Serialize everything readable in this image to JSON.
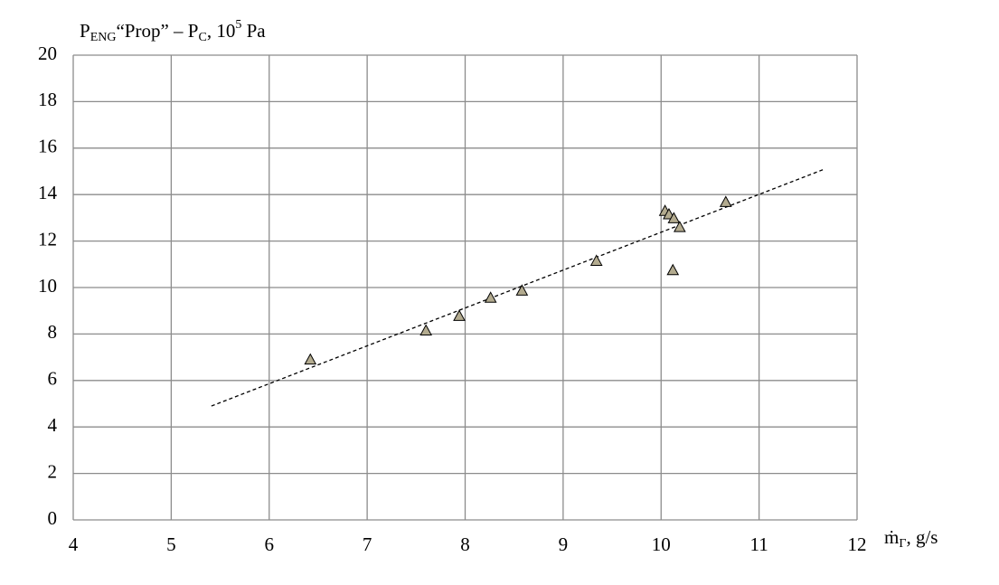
{
  "chart_data": {
    "type": "scatter",
    "y_label": [
      "P",
      "ENG",
      "“Prop” – P",
      "C",
      ", 10",
      "5",
      " Pa"
    ],
    "x_label": [
      "ṁ",
      "Γ",
      ", g/s"
    ],
    "series": [
      {
        "color": "#b3ab8f",
        "x": [
          6.42,
          7.6,
          7.94,
          8.26,
          8.58,
          9.34,
          10.04,
          10.08,
          10.13,
          10.19,
          10.12,
          10.66
        ],
        "values": [
          6.9,
          8.15,
          8.78,
          9.56,
          9.87,
          11.15,
          13.3,
          13.15,
          12.98,
          12.6,
          10.75,
          13.68
        ]
      }
    ],
    "trendline": {
      "x": [
        5.41,
        11.67
      ],
      "y": [
        4.9,
        15.1
      ],
      "color": "#000"
    },
    "xlim": [
      4,
      12
    ],
    "xticks": [
      4,
      5,
      6,
      7,
      8,
      9,
      10,
      11,
      12
    ],
    "ylim": [
      0,
      20
    ],
    "yticks": [
      0,
      2,
      4,
      6,
      8,
      10,
      12,
      14,
      16,
      18,
      20
    ],
    "grid": true
  }
}
